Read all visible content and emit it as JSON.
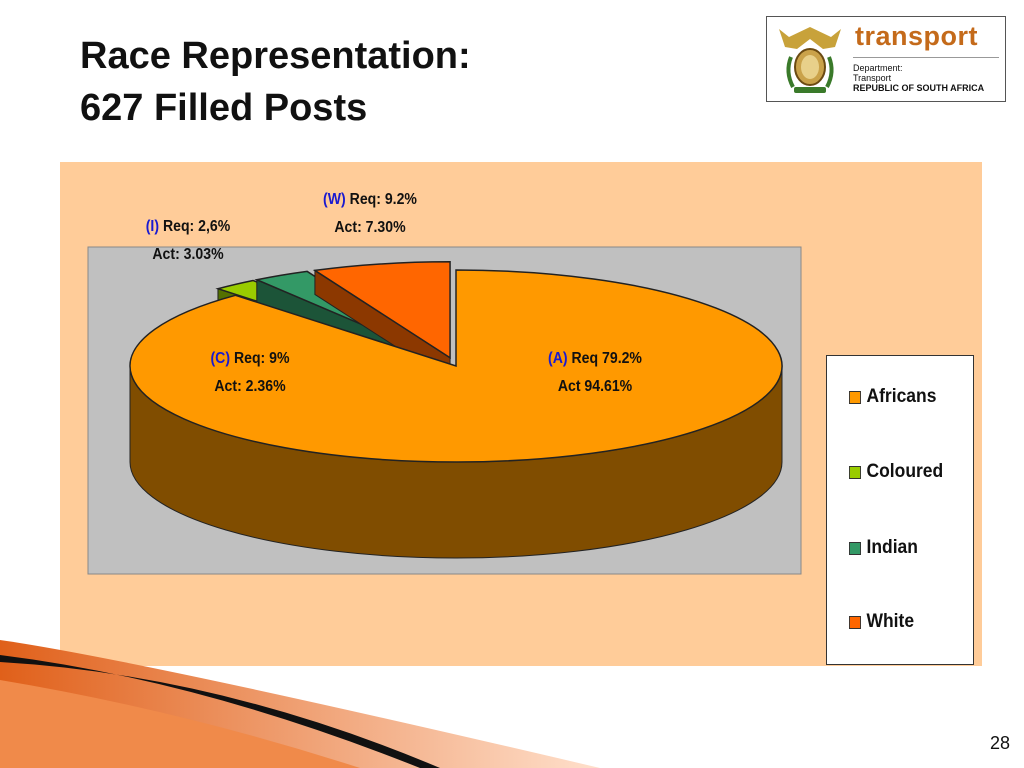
{
  "title_line1": "Race Representation:",
  "title_line2": "627 Filled Posts",
  "logo": {
    "word": "transport",
    "line1": "Department:",
    "line2": "Transport",
    "line3": "REPUBLIC OF SOUTH AFRICA"
  },
  "page_number": "28",
  "chart_data": {
    "type": "pie",
    "style": "3d-exploded",
    "legend_position": "right",
    "categories": [
      "Africans",
      "Coloured",
      "Indian",
      "White"
    ],
    "values": [
      94.61,
      2.36,
      3.03,
      7.3
    ],
    "colors": [
      "#ff9900",
      "#99cc00",
      "#339966",
      "#ff6600"
    ],
    "labels": [
      {
        "cat": "(A)",
        "req": "Req 79.2%",
        "act": "Act 94.61%"
      },
      {
        "cat": "(C)",
        "req": "Req: 9%",
        "act": "Act: 2.36%"
      },
      {
        "cat": "(I)",
        "req": "Req: 2,6%",
        "act": "Act: 3.03%"
      },
      {
        "cat": "(W)",
        "req": "Req: 9.2%",
        "act": "Act: 7.30%"
      }
    ]
  }
}
